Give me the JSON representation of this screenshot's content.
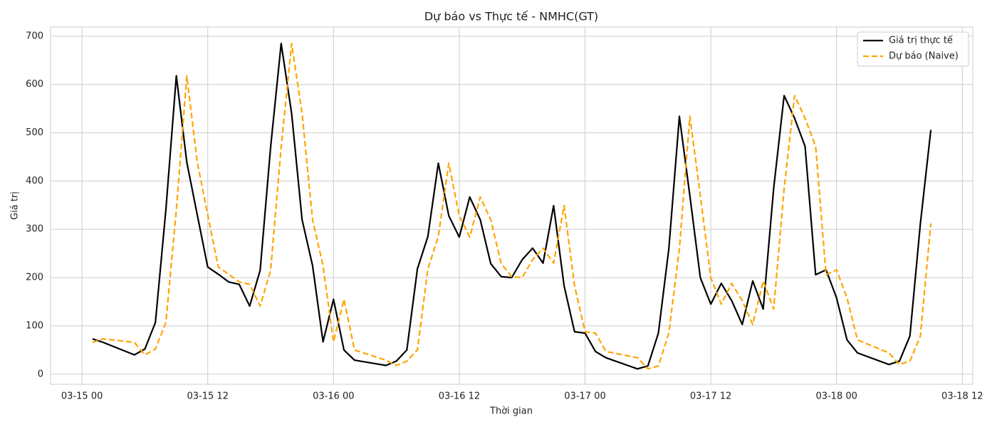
{
  "chart_data": {
    "type": "line",
    "title": "Dự báo vs Thực tế - NMHC(GT)",
    "xlabel": "Thời gian",
    "ylabel": "Giá trị",
    "x": [
      "03-15 01",
      "03-15 02",
      "03-15 05",
      "03-15 06",
      "03-15 07",
      "03-15 08",
      "03-15 09",
      "03-15 10",
      "03-15 11",
      "03-15 12",
      "03-15 13",
      "03-15 14",
      "03-15 15",
      "03-15 16",
      "03-15 17",
      "03-15 18",
      "03-15 19",
      "03-15 20",
      "03-15 21",
      "03-15 22",
      "03-15 23",
      "03-16 00",
      "03-16 01",
      "03-16 02",
      "03-16 05",
      "03-16 06",
      "03-16 07",
      "03-16 08",
      "03-16 09",
      "03-16 10",
      "03-16 11",
      "03-16 12",
      "03-16 13",
      "03-16 14",
      "03-16 15",
      "03-16 16",
      "03-16 17",
      "03-16 18",
      "03-16 19",
      "03-16 20",
      "03-16 21",
      "03-16 22",
      "03-16 23",
      "03-17 00",
      "03-17 01",
      "03-17 02",
      "03-17 05",
      "03-17 06",
      "03-17 07",
      "03-17 08",
      "03-17 09",
      "03-17 10",
      "03-17 11",
      "03-17 12",
      "03-17 13",
      "03-17 14",
      "03-17 15",
      "03-17 16",
      "03-17 17",
      "03-17 18",
      "03-17 19",
      "03-17 20",
      "03-17 21",
      "03-17 22",
      "03-17 23",
      "03-18 00",
      "03-18 01",
      "03-18 02",
      "03-18 05",
      "03-18 06",
      "03-18 07",
      "03-18 08",
      "03-18 09"
    ],
    "series": [
      {
        "name": "Giá trị thực tế",
        "color": "#000000",
        "linestyle": "solid",
        "values": [
          73,
          66,
          40,
          52,
          107,
          340,
          618,
          439,
          330,
          222,
          207,
          191,
          186,
          141,
          215,
          470,
          685,
          540,
          320,
          225,
          67,
          155,
          50,
          29,
          18,
          27,
          50,
          218,
          285,
          437,
          328,
          284,
          367,
          320,
          229,
          202,
          200,
          237,
          261,
          230,
          349,
          183,
          88,
          85,
          47,
          34,
          11,
          17,
          85,
          260,
          534,
          370,
          200,
          145,
          188,
          152,
          103,
          193,
          135,
          385,
          577,
          530,
          472,
          206,
          216,
          158,
          71,
          44,
          20,
          27,
          79,
          312,
          506
        ]
      },
      {
        "name": "Dự báo (Naive)",
        "color": "#ffa500",
        "linestyle": "dashed",
        "values": [
          66,
          73,
          66,
          40,
          52,
          107,
          340,
          618,
          439,
          330,
          222,
          207,
          191,
          186,
          141,
          215,
          470,
          685,
          540,
          320,
          225,
          67,
          155,
          50,
          29,
          18,
          27,
          50,
          218,
          285,
          437,
          328,
          284,
          367,
          320,
          229,
          202,
          200,
          237,
          261,
          230,
          349,
          183,
          88,
          85,
          47,
          34,
          11,
          17,
          85,
          260,
          534,
          370,
          200,
          145,
          188,
          152,
          103,
          193,
          135,
          385,
          577,
          530,
          472,
          206,
          216,
          158,
          71,
          44,
          20,
          27,
          79,
          312
        ]
      }
    ],
    "xlim": [
      "03-14 21",
      "03-18 13"
    ],
    "xticks": [
      "03-15 00",
      "03-15 12",
      "03-16 00",
      "03-16 12",
      "03-17 00",
      "03-17 12",
      "03-18 00",
      "03-18 12"
    ],
    "ylim": [
      -21,
      719
    ],
    "yticks": [
      0,
      100,
      200,
      300,
      400,
      500,
      600,
      700
    ],
    "grid": true,
    "legend": "upper right"
  }
}
